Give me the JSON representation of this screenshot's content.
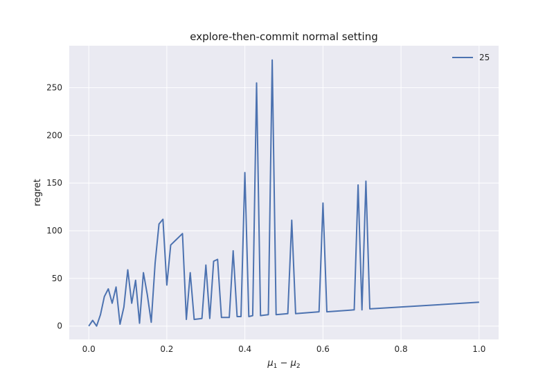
{
  "chart_data": {
    "type": "line",
    "title": "explore-then-commit normal setting",
    "xlabel": "μ1 − μ2",
    "ylabel": "regret",
    "xlim": [
      -0.05,
      1.05
    ],
    "ylim": [
      -14,
      294
    ],
    "xticks": [
      0.0,
      0.2,
      0.4,
      0.6,
      0.8,
      1.0
    ],
    "xtick_labels": [
      "0.0",
      "0.2",
      "0.4",
      "0.6",
      "0.8",
      "1.0"
    ],
    "yticks": [
      0,
      50,
      100,
      150,
      200,
      250
    ],
    "ytick_labels": [
      "0",
      "50",
      "100",
      "150",
      "200",
      "250"
    ],
    "grid": true,
    "legend_position": "top-right",
    "colors": {
      "background": "#eaeaf2",
      "grid": "#ffffff",
      "series": [
        "#4c72b0"
      ]
    },
    "series": [
      {
        "name": "25",
        "x": [
          0.0,
          0.01,
          0.02,
          0.03,
          0.04,
          0.05,
          0.06,
          0.07,
          0.08,
          0.09,
          0.1,
          0.11,
          0.12,
          0.13,
          0.14,
          0.15,
          0.16,
          0.17,
          0.18,
          0.19,
          0.2,
          0.21,
          0.24,
          0.25,
          0.26,
          0.27,
          0.29,
          0.3,
          0.31,
          0.32,
          0.33,
          0.34,
          0.36,
          0.37,
          0.38,
          0.39,
          0.4,
          0.41,
          0.42,
          0.43,
          0.44,
          0.46,
          0.47,
          0.48,
          0.51,
          0.52,
          0.53,
          0.59,
          0.6,
          0.61,
          0.68,
          0.69,
          0.7,
          0.71,
          0.72,
          1.0
        ],
        "values": [
          0,
          6,
          0,
          12,
          31,
          39,
          24,
          41,
          2,
          20,
          59,
          24,
          48,
          3,
          56,
          33,
          4,
          66,
          107,
          112,
          43,
          85,
          97,
          7,
          56,
          7,
          8,
          64,
          8,
          68,
          70,
          9,
          9,
          79,
          10,
          10,
          161,
          10,
          11,
          255,
          11,
          12,
          279,
          12,
          13,
          111,
          13,
          15,
          129,
          15,
          17,
          148,
          17,
          152,
          18,
          25
        ]
      }
    ]
  }
}
